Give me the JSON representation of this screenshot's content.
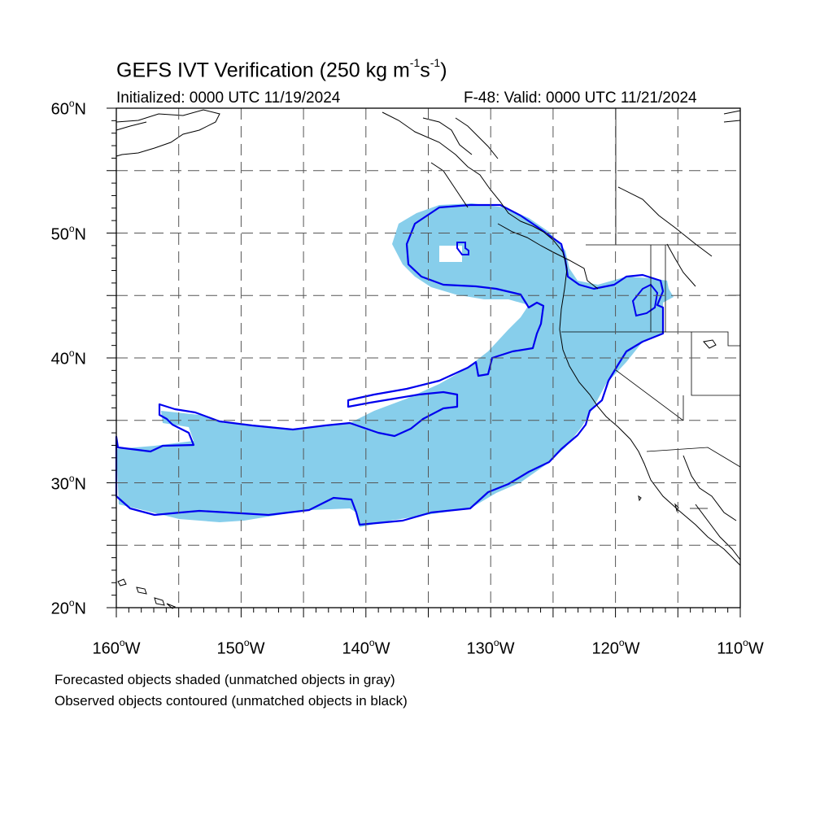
{
  "title": {
    "prefix": "GEFS IVT Verification (250 kg m",
    "exp1": "-1",
    "mid": "s",
    "exp2": "-1",
    "suffix": ")"
  },
  "initialized": "Initialized: 0000 UTC 11/19/2024",
  "valid": "F-48: Valid: 0000 UTC 11/21/2024",
  "lat_labels": [
    "60",
    "50",
    "40",
    "30",
    "20"
  ],
  "lat_suffix": "N",
  "lon_labels": [
    "160",
    "150",
    "140",
    "130",
    "120",
    "110"
  ],
  "lon_suffix": "W",
  "degree": "o",
  "notes": [
    "Forecasted objects shaded (unmatched objects in gray)",
    "Observed objects contoured (unmatched objects in black)"
  ],
  "colors": {
    "forecast_fill": "#87ceeb",
    "observed_contour": "#0000ee",
    "coast": "#000000",
    "grid": "#555555"
  },
  "map": {
    "lon_range": [
      -160,
      -110
    ],
    "lat_range": [
      20,
      60
    ],
    "grid_interval_deg": 5
  }
}
